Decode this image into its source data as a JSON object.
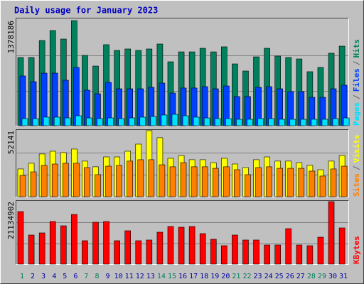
{
  "title": "Daily usage for January 2023",
  "chart_data": [
    {
      "type": "bar",
      "ylim": [
        0,
        1378186
      ],
      "yticks": [
        1378186
      ],
      "separator": "/",
      "series": [
        {
          "name": "Hits",
          "color": "#00805c",
          "values": [
            894000,
            894000,
            1117000,
            1248000,
            1136000,
            1378186,
            922000,
            782000,
            1062000,
            987000,
            1006000,
            987000,
            1006000,
            1071000,
            838000,
            968000,
            968000,
            1015000,
            968000,
            1034000,
            810000,
            717000,
            903000,
            1015000,
            913000,
            894000,
            875000,
            708000,
            764000,
            950000,
            1043000
          ]
        },
        {
          "name": "Files",
          "color": "#0040ff",
          "values": [
            652000,
            577000,
            689000,
            689000,
            596000,
            764000,
            466000,
            419000,
            568000,
            484000,
            484000,
            484000,
            503000,
            559000,
            428000,
            494000,
            494000,
            512000,
            484000,
            521000,
            382000,
            382000,
            503000,
            512000,
            484000,
            447000,
            447000,
            372000,
            372000,
            484000,
            531000
          ]
        },
        {
          "name": "Pages",
          "color": "#00e0ff",
          "values": [
            93000,
            93000,
            112000,
            112000,
            102000,
            130000,
            102000,
            93000,
            102000,
            93000,
            102000,
            112000,
            121000,
            140000,
            149000,
            130000,
            112000,
            102000,
            93000,
            93000,
            84000,
            84000,
            93000,
            93000,
            84000,
            84000,
            84000,
            84000,
            84000,
            93000,
            102000
          ]
        }
      ]
    },
    {
      "type": "bar",
      "ylim": [
        0,
        52141
      ],
      "yticks": [
        52141
      ],
      "separator": "/",
      "series": [
        {
          "name": "Visits",
          "color": "#ffff00",
          "values": [
            21900,
            26400,
            33700,
            35900,
            34800,
            37600,
            28100,
            23600,
            31400,
            31400,
            35900,
            41500,
            52141,
            46600,
            30300,
            32500,
            29200,
            29200,
            26900,
            30300,
            25800,
            23000,
            29200,
            31400,
            28100,
            28100,
            26900,
            24700,
            21300,
            28100,
            32500
          ]
        },
        {
          "name": "Sites",
          "color": "#ff8000",
          "values": [
            16800,
            19600,
            24700,
            25800,
            26400,
            26400,
            23000,
            17400,
            24100,
            24700,
            28100,
            29200,
            29200,
            25200,
            23600,
            26900,
            23600,
            23600,
            22400,
            23600,
            21300,
            17400,
            23000,
            23600,
            22400,
            22400,
            22400,
            20200,
            16300,
            21900,
            24100
          ]
        }
      ]
    },
    {
      "type": "bar",
      "ylim": [
        0,
        21134902
      ],
      "yticks": [
        21134902
      ],
      "categories": [
        "1",
        "2",
        "3",
        "4",
        "5",
        "6",
        "7",
        "8",
        "9",
        "10",
        "11",
        "12",
        "13",
        "14",
        "15",
        "16",
        "17",
        "18",
        "19",
        "20",
        "21",
        "22",
        "23",
        "24",
        "25",
        "26",
        "27",
        "28",
        "29",
        "30",
        "31"
      ],
      "category_colors": [
        "#00805c",
        "#0000a0",
        "#0000a0",
        "#0000a0",
        "#0000a0",
        "#0000a0",
        "#00805c",
        "#00805c",
        "#0000a0",
        "#0000a0",
        "#0000a0",
        "#0000a0",
        "#0000a0",
        "#00805c",
        "#00805c",
        "#0000a0",
        "#0000a0",
        "#0000a0",
        "#0000a0",
        "#0000a0",
        "#00805c",
        "#00805c",
        "#0000a0",
        "#0000a0",
        "#0000a0",
        "#0000a0",
        "#0000a0",
        "#00805c",
        "#00805c",
        "#0000a0",
        "#0000a0"
      ],
      "series": [
        {
          "name": "KBytes",
          "color": "#ff0000",
          "values": [
            17773000,
            9847000,
            10567000,
            14410000,
            12969000,
            16812000,
            7926000,
            14170000,
            14410000,
            7926000,
            11288000,
            7926000,
            8166000,
            10808000,
            12729000,
            12489000,
            12729000,
            10327000,
            8406000,
            6244000,
            9847000,
            8166000,
            8166000,
            6485000,
            6485000,
            12008000,
            6485000,
            6244000,
            9126000,
            21134902,
            12249000
          ]
        }
      ]
    }
  ]
}
